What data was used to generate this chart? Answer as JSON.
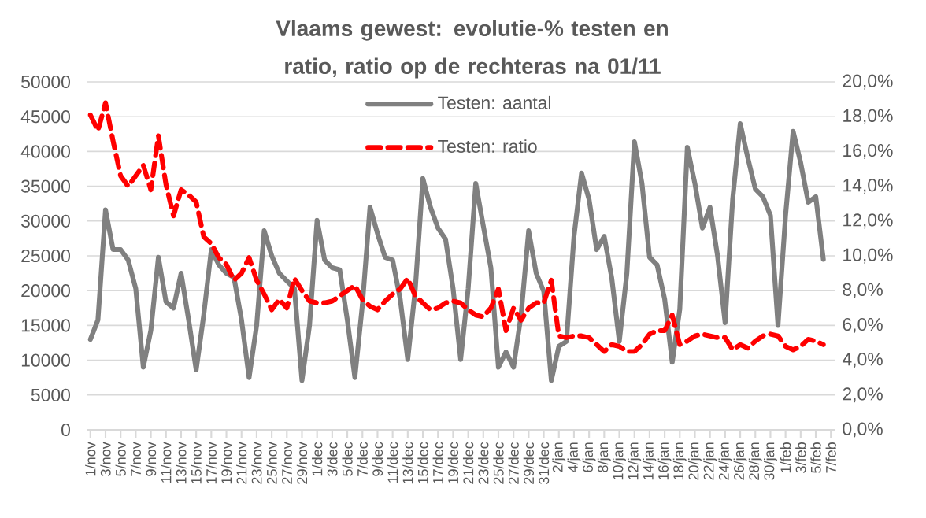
{
  "chart_data": {
    "type": "line",
    "title": "Vlaams gewest: evolutie-% testen en ratio, ratio op de rechteras na 01/11",
    "categories": [
      "1/nov",
      null,
      "3/nov",
      null,
      "5/nov",
      null,
      "7/nov",
      null,
      "9/nov",
      null,
      "11/nov",
      null,
      "13/nov",
      null,
      "15/nov",
      null,
      "17/nov",
      null,
      "19/nov",
      null,
      "21/nov",
      null,
      "23/nov",
      null,
      "25/nov",
      null,
      "27/nov",
      null,
      "29/nov",
      null,
      "1/dec",
      null,
      "3/dec",
      null,
      "5/dec",
      null,
      "7/dec",
      null,
      "9/dec",
      null,
      "11/dec",
      null,
      "13/dec",
      null,
      "15/dec",
      null,
      "17/dec",
      null,
      "19/dec",
      null,
      "21/dec",
      null,
      "23/dec",
      null,
      "25/dec",
      null,
      "27/dec",
      null,
      "29/dec",
      null,
      "31/dec",
      null,
      "2/jan",
      null,
      "4/jan",
      null,
      "6/jan",
      null,
      "8/jan",
      null,
      "10/jan",
      null,
      "12/jan",
      null,
      "14/jan",
      null,
      "16/jan",
      null,
      "18/jan",
      null,
      "20/jan",
      null,
      "22/jan",
      null,
      "24/jan",
      null,
      "26/jan",
      null,
      "28/jan",
      null,
      "30/jan",
      null,
      "1/feb",
      null,
      "3/feb",
      null,
      "5/feb",
      null,
      "7/feb"
    ],
    "series": [
      {
        "name": "Testen: aantal",
        "color": "#808080",
        "line_style": "solid",
        "values": [
          13000,
          15800,
          31600,
          25900,
          25900,
          24400,
          20300,
          9000,
          14300,
          24800,
          18400,
          17500,
          22500,
          15800,
          8600,
          16500,
          25900,
          23700,
          22500,
          21900,
          15800,
          7500,
          15000,
          28600,
          25000,
          22500,
          21400,
          20300,
          7100,
          15000,
          30100,
          24400,
          23300,
          23000,
          15800,
          7500,
          18000,
          32000,
          28200,
          24800,
          24400,
          18800,
          10100,
          20300,
          36100,
          32000,
          29000,
          27400,
          20300,
          10100,
          20300,
          35400,
          29300,
          23300,
          9000,
          11200,
          9000,
          16500,
          28600,
          22500,
          19900,
          7100,
          12000,
          12700,
          27800,
          36900,
          33100,
          25900,
          27800,
          21800,
          12700,
          22500,
          41400,
          35400,
          24800,
          23700,
          18800,
          9700,
          17300,
          40600,
          35400,
          29000,
          32000,
          25000,
          15400,
          33100,
          44000,
          39100,
          34600,
          33500,
          30800,
          15000,
          30800,
          42900,
          38400,
          32700,
          33500,
          24500,
          null
        ]
      },
      {
        "name": "Testen: ratio",
        "color": "#ff0000",
        "line_style": "dashed",
        "axis": "y2",
        "values": [
          18.1,
          17.2,
          18.8,
          16.6,
          14.6,
          14.0,
          14.6,
          15.2,
          13.8,
          16.9,
          14.1,
          12.3,
          13.8,
          13.5,
          13.1,
          11.1,
          10.7,
          9.9,
          9.5,
          8.6,
          9.0,
          9.9,
          8.6,
          7.8,
          6.9,
          7.5,
          7.0,
          8.7,
          8.0,
          7.4,
          7.3,
          7.3,
          7.4,
          7.7,
          8.0,
          8.3,
          7.5,
          7.1,
          6.9,
          7.4,
          7.8,
          8.1,
          8.7,
          7.7,
          7.3,
          6.9,
          7.0,
          7.3,
          7.4,
          7.3,
          6.9,
          6.6,
          6.5,
          7.0,
          8.1,
          5.7,
          7.0,
          6.3,
          7.0,
          7.3,
          7.3,
          8.6,
          5.4,
          5.3,
          5.4,
          5.4,
          5.3,
          4.9,
          4.5,
          4.9,
          4.8,
          4.5,
          4.5,
          4.9,
          5.5,
          5.7,
          5.7,
          6.6,
          4.9,
          5.1,
          5.4,
          5.5,
          5.4,
          5.3,
          5.3,
          4.6,
          4.9,
          4.7,
          5.1,
          5.4,
          5.5,
          5.4,
          4.8,
          4.6,
          4.8,
          5.2,
          5.1,
          4.9,
          null
        ]
      }
    ],
    "ylim": [
      0,
      50000
    ],
    "yticks": [
      0,
      5000,
      10000,
      15000,
      20000,
      25000,
      30000,
      35000,
      40000,
      45000,
      50000
    ],
    "y2lim": [
      0,
      20
    ],
    "y2ticks": [
      {
        "value": 0,
        "label": "0,0%"
      },
      {
        "value": 2,
        "label": "2,0%"
      },
      {
        "value": 4,
        "label": "4,0%"
      },
      {
        "value": 6,
        "label": "6,0%"
      },
      {
        "value": 8,
        "label": "8,0%"
      },
      {
        "value": 10,
        "label": "10,0%"
      },
      {
        "value": 12,
        "label": "12,0%"
      },
      {
        "value": 14,
        "label": "14,0%"
      },
      {
        "value": 16,
        "label": "16,0%"
      },
      {
        "value": 18,
        "label": "18,0%"
      },
      {
        "value": 20,
        "label": "20,0%"
      }
    ],
    "grid": "y",
    "legend": "top"
  }
}
